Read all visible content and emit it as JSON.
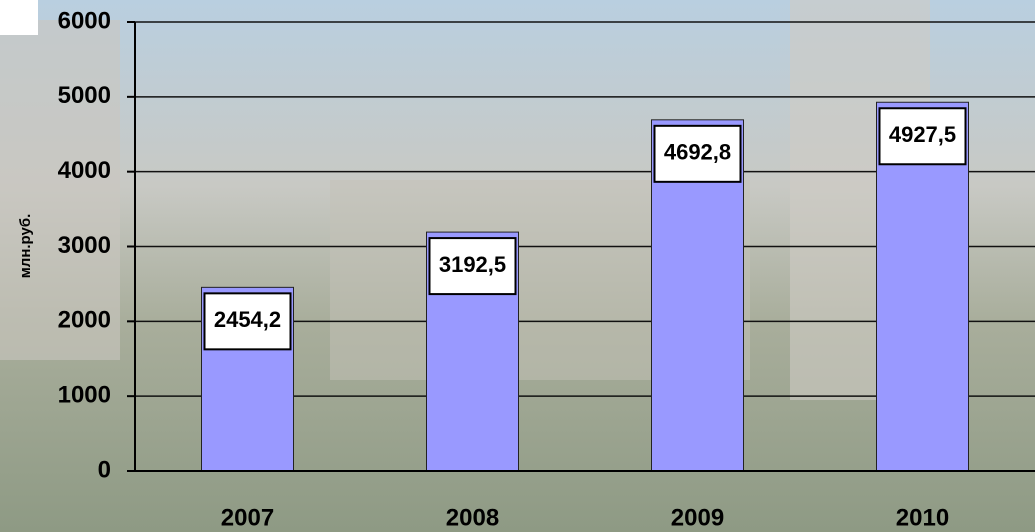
{
  "chart_data": {
    "type": "bar",
    "y_axis_label": "млн.руб.",
    "categories": [
      "2007",
      "2008",
      "2009",
      "2010"
    ],
    "values": [
      2454.2,
      3192.5,
      4692.8,
      4927.5
    ],
    "value_labels": [
      "2454,2",
      "3192,5",
      "4692,8",
      "4927,5"
    ],
    "color": "#9999ff",
    "ylim": [
      0,
      6000
    ],
    "yticks": [
      0,
      1000,
      2000,
      3000,
      4000,
      5000,
      6000
    ],
    "grid": true
  }
}
